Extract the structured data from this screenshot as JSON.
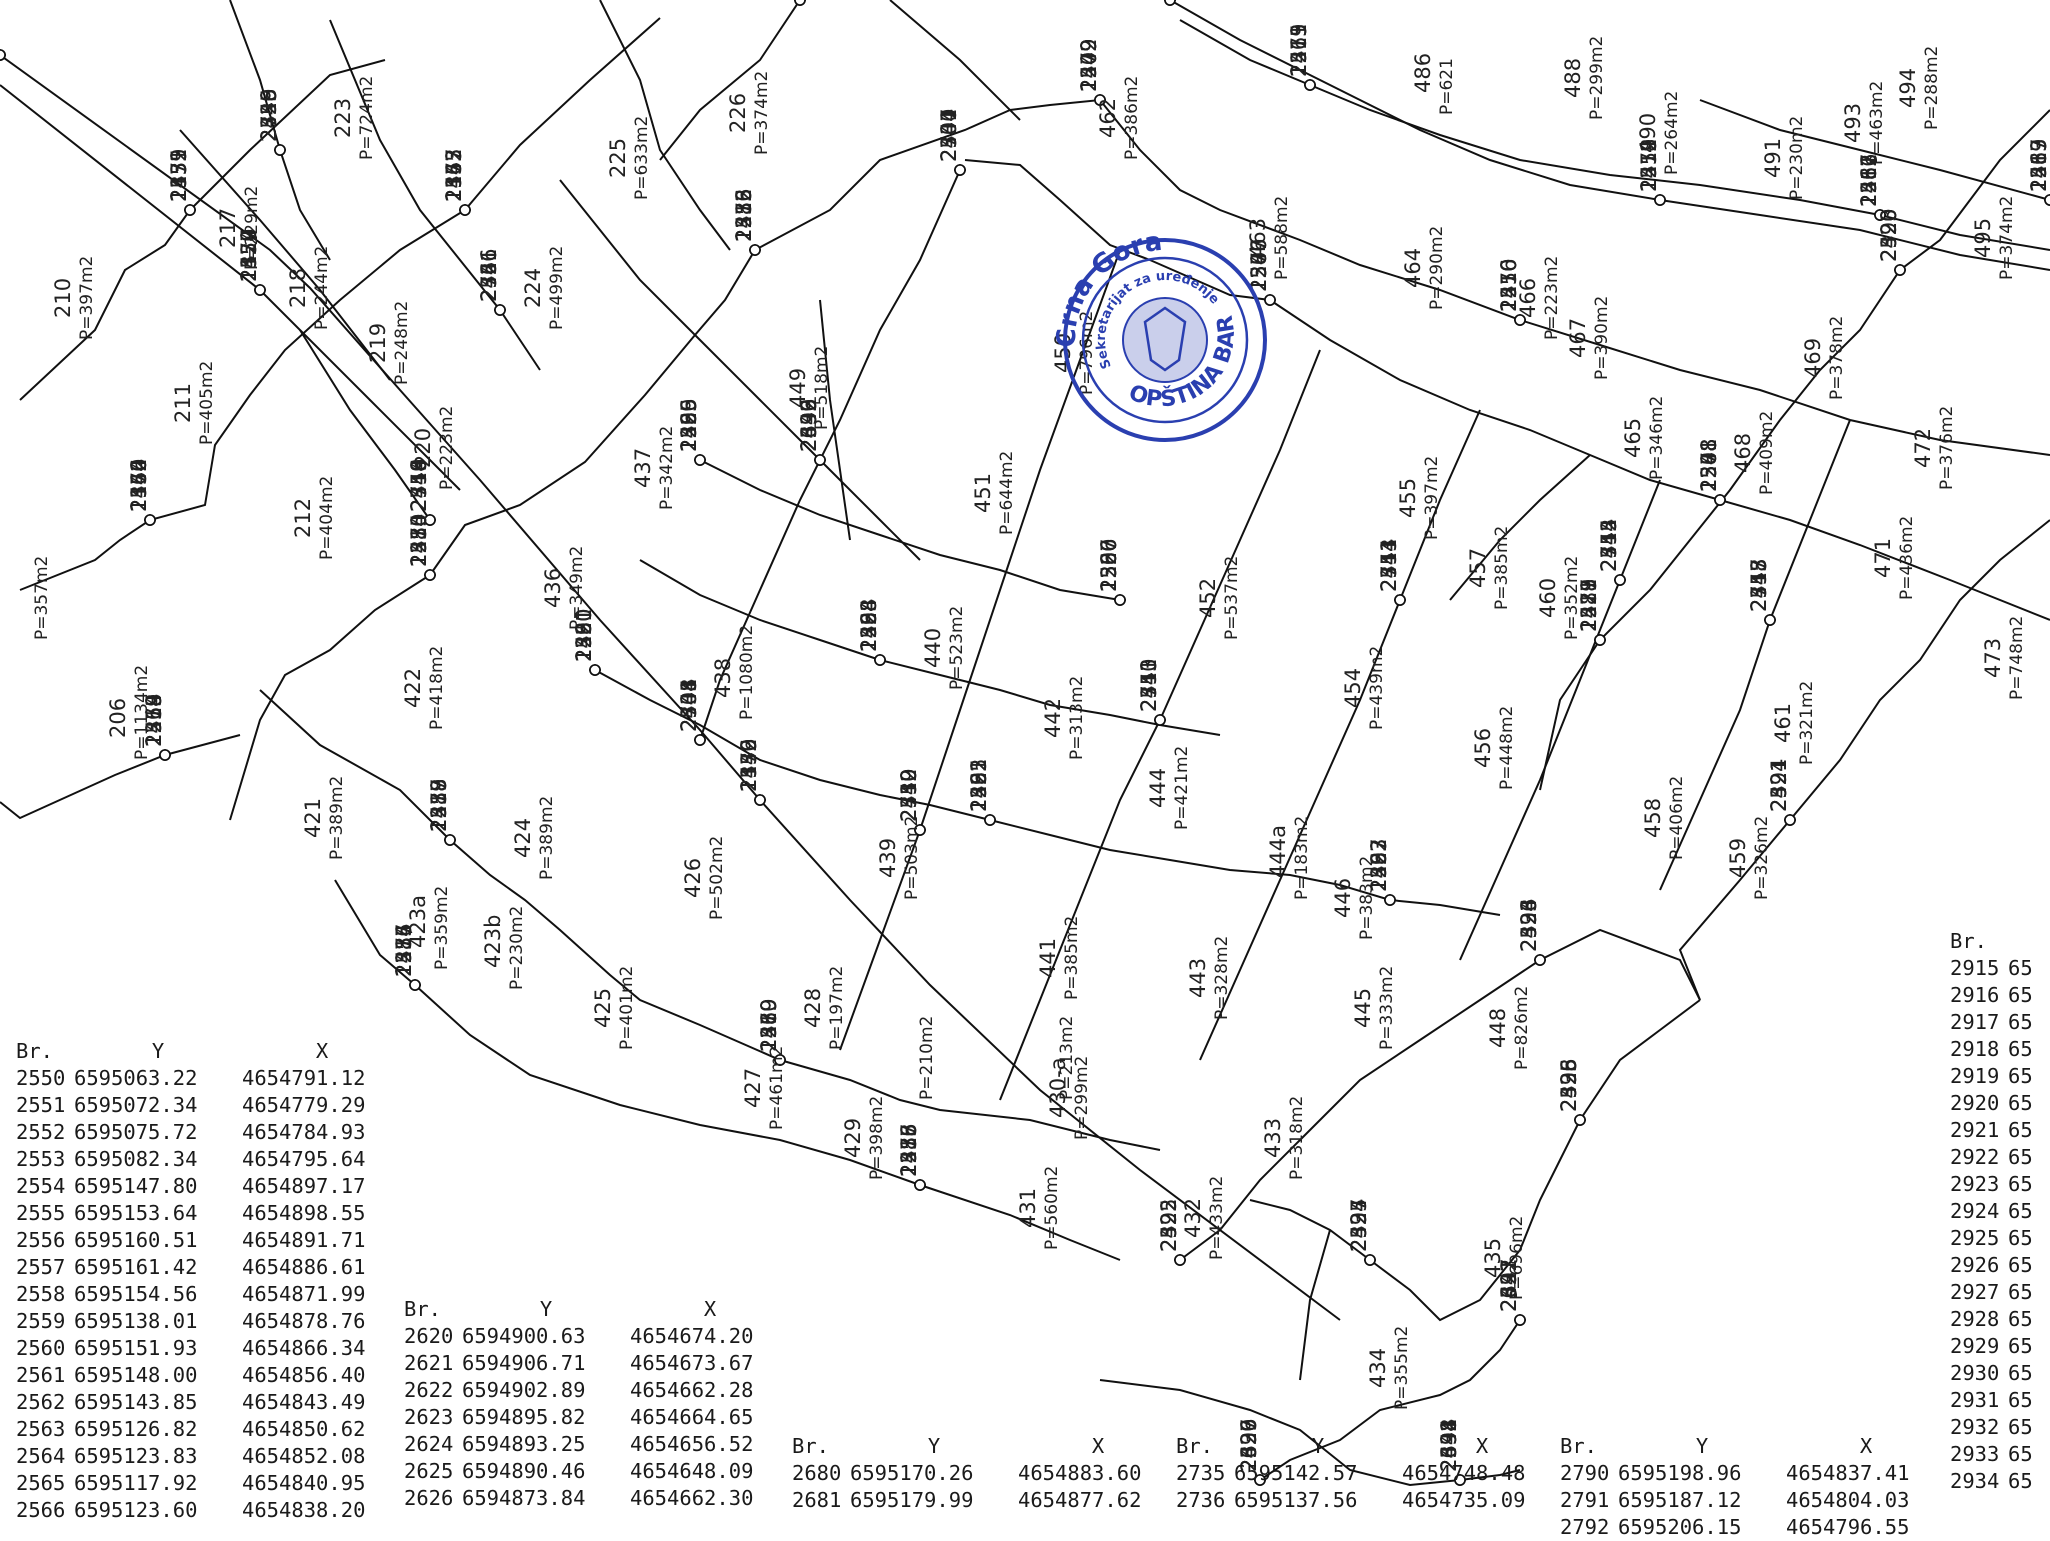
{
  "stamp": {
    "country": "Crna Gora",
    "line1": "Sekretarijat za uređenje prostora",
    "place": "OPŠTINA BAR",
    "color": "#2a3fb0"
  },
  "parcels": [
    {
      "no": "210",
      "area": "P=397m2"
    },
    {
      "no": "217",
      "area": "P=229m2"
    },
    {
      "no": "223",
      "area": "P=724m2"
    },
    {
      "no": "218",
      "area": "P=244m2"
    },
    {
      "no": "219",
      "area": "P=248m2"
    },
    {
      "no": "224",
      "area": "P=499m2"
    },
    {
      "no": "225",
      "area": "P=633m2"
    },
    {
      "no": "226",
      "area": "P=374m2"
    },
    {
      "no": "211",
      "area": "P=405m2"
    },
    {
      "no": "220",
      "area": "P=223m2"
    },
    {
      "no": "212",
      "area": "P=404m2"
    },
    {
      "no": "206",
      "area": "P=1134m2"
    },
    {
      "no": "437",
      "area": "P=342m2"
    },
    {
      "no": "436",
      "area": "P=349m2"
    },
    {
      "no": "422",
      "area": "P=418m2"
    },
    {
      "no": "438",
      "area": "P=1080m2"
    },
    {
      "no": "449",
      "area": "P=518m2"
    },
    {
      "no": "450",
      "area": "P=796m2"
    },
    {
      "no": "462",
      "area": "P=386m2"
    },
    {
      "no": "463",
      "area": "P=588m2"
    },
    {
      "no": "451",
      "area": "P=644m2"
    },
    {
      "no": "440",
      "area": "P=523m2"
    },
    {
      "no": "442",
      "area": "P=313m2"
    },
    {
      "no": "452",
      "area": "P=537m2"
    },
    {
      "no": "455",
      "area": "P=397m2"
    },
    {
      "no": "457",
      "area": "P=385m2"
    },
    {
      "no": "464",
      "area": "P=290m2"
    },
    {
      "no": "466",
      "area": "P=223m2"
    },
    {
      "no": "467",
      "area": "P=390m2"
    },
    {
      "no": "465",
      "area": "P=346m2"
    },
    {
      "no": "486",
      "area": "P=621"
    },
    {
      "no": "488",
      "area": "P=299m2"
    },
    {
      "no": "490",
      "area": "P=264m2"
    },
    {
      "no": "491",
      "area": "P=230m2"
    },
    {
      "no": "493",
      "area": "P=463m2"
    },
    {
      "no": "494",
      "area": "P=288m2"
    },
    {
      "no": "495",
      "area": "P=374m2"
    },
    {
      "no": "469",
      "area": "P=378m2"
    },
    {
      "no": "468",
      "area": "P=409m2"
    },
    {
      "no": "472",
      "area": "P=376m2"
    },
    {
      "no": "471",
      "area": "P=436m2"
    },
    {
      "no": "473",
      "area": "P=748m2"
    },
    {
      "no": "460",
      "area": "P=352m2"
    },
    {
      "no": "454",
      "area": "P=439m2"
    },
    {
      "no": "456",
      "area": "P=448m2"
    },
    {
      "no": "458",
      "area": "P=406m2"
    },
    {
      "no": "461",
      "area": "P=321m2"
    },
    {
      "no": "459",
      "area": "P=326m2"
    },
    {
      "no": "421",
      "area": "P=389m2"
    },
    {
      "no": "424",
      "area": "P=389m2"
    },
    {
      "no": "426",
      "area": "P=502m2"
    },
    {
      "no": "439",
      "area": "P=503m2"
    },
    {
      "no": "444",
      "area": "P=421m2"
    },
    {
      "no": "444a",
      "area": "P=183m2"
    },
    {
      "no": "446",
      "area": "P=383m2"
    },
    {
      "no": "441",
      "area": "P=385m2"
    },
    {
      "no": "443",
      "area": "P=328m2"
    },
    {
      "no": "445",
      "area": "P=333m2"
    },
    {
      "no": "448",
      "area": "P=826m2"
    },
    {
      "no": "425",
      "area": "P=401m2"
    },
    {
      "no": "428",
      "area": "P=197m2"
    },
    {
      "no": "427",
      "area": "P=461m2"
    },
    {
      "no": "423a",
      "area": "P=359m2"
    },
    {
      "no": "423b",
      "area": "P=230m2"
    },
    {
      "no": "429",
      "area": "P=398m2"
    },
    {
      "no": "430-a",
      "area": "P=299m2"
    },
    {
      "no": "431",
      "area": "P=560m2"
    },
    {
      "no": "432",
      "area": "P=433m2"
    },
    {
      "no": "433",
      "area": "P=318m2"
    },
    {
      "no": "434",
      "area": "P=355m2"
    },
    {
      "no": "435",
      "area": "P=696m2"
    },
    {
      "no": "",
      "area": "P=357m2"
    },
    {
      "no": "",
      "area": "P=213m2"
    },
    {
      "no": "",
      "area": "P=210m2"
    }
  ],
  "tables": [
    {
      "header": {
        "br": "Br.",
        "y": "Y",
        "x": "X"
      },
      "rows": [
        [
          "2550",
          "6595063.22",
          "4654791.12"
        ],
        [
          "2551",
          "6595072.34",
          "4654779.29"
        ],
        [
          "2552",
          "6595075.72",
          "4654784.93"
        ],
        [
          "2553",
          "6595082.34",
          "4654795.64"
        ],
        [
          "2554",
          "6595147.80",
          "4654897.17"
        ],
        [
          "2555",
          "6595153.64",
          "4654898.55"
        ],
        [
          "2556",
          "6595160.51",
          "4654891.71"
        ],
        [
          "2557",
          "6595161.42",
          "4654886.61"
        ],
        [
          "2558",
          "6595154.56",
          "4654871.99"
        ],
        [
          "2559",
          "6595138.01",
          "4654878.76"
        ],
        [
          "2560",
          "6595151.93",
          "4654866.34"
        ],
        [
          "2561",
          "6595148.00",
          "4654856.40"
        ],
        [
          "2562",
          "6595143.85",
          "4654843.49"
        ],
        [
          "2563",
          "6595126.82",
          "4654850.62"
        ],
        [
          "2564",
          "6595123.83",
          "4654852.08"
        ],
        [
          "2565",
          "6595117.92",
          "4654840.95"
        ],
        [
          "2566",
          "6595123.60",
          "4654838.20"
        ]
      ]
    },
    {
      "header": {
        "br": "Br.",
        "y": "Y",
        "x": "X"
      },
      "rows": [
        [
          "2620",
          "6594900.63",
          "4654674.20"
        ],
        [
          "2621",
          "6594906.71",
          "4654673.67"
        ],
        [
          "2622",
          "6594902.89",
          "4654662.28"
        ],
        [
          "2623",
          "6594895.82",
          "4654664.65"
        ],
        [
          "2624",
          "6594893.25",
          "4654656.52"
        ],
        [
          "2625",
          "6594890.46",
          "4654648.09"
        ],
        [
          "2626",
          "6594873.84",
          "4654662.30"
        ]
      ]
    },
    {
      "header": {
        "br": "Br.",
        "y": "Y",
        "x": "X"
      },
      "rows": [
        [
          "2680",
          "6595170.26",
          "4654883.60"
        ],
        [
          "2681",
          "6595179.99",
          "4654877.62"
        ]
      ]
    },
    {
      "header": {
        "br": "Br.",
        "y": "Y",
        "x": "X"
      },
      "rows": [
        [
          "2735",
          "6595142.57",
          "4654748.48"
        ],
        [
          "2736",
          "6595137.56",
          "4654735.09"
        ]
      ]
    },
    {
      "header": {
        "br": "Br.",
        "y": "Y",
        "x": "X"
      },
      "rows": [
        [
          "2790",
          "6595198.96",
          "4654837.41"
        ],
        [
          "2791",
          "6595187.12",
          "4654804.03"
        ],
        [
          "2792",
          "6595206.15",
          "4654796.55"
        ]
      ]
    },
    {
      "header": {
        "br": "Br.",
        "y": "",
        "x": ""
      },
      "rows": [
        [
          "2915",
          "65",
          ""
        ],
        [
          "2916",
          "65",
          ""
        ],
        [
          "2917",
          "65",
          ""
        ],
        [
          "2918",
          "65",
          ""
        ],
        [
          "2919",
          "65",
          ""
        ],
        [
          "2920",
          "65",
          ""
        ],
        [
          "2921",
          "65",
          ""
        ],
        [
          "2922",
          "65",
          ""
        ],
        [
          "2923",
          "65",
          ""
        ],
        [
          "2924",
          "65",
          ""
        ],
        [
          "2925",
          "65",
          ""
        ],
        [
          "2926",
          "65",
          ""
        ],
        [
          "2927",
          "65",
          ""
        ],
        [
          "2928",
          "65",
          ""
        ],
        [
          "2929",
          "65",
          ""
        ],
        [
          "2930",
          "65",
          ""
        ],
        [
          "2931",
          "65",
          ""
        ],
        [
          "2932",
          "65",
          ""
        ],
        [
          "2933",
          "65",
          ""
        ],
        [
          "2934",
          "65",
          ""
        ]
      ]
    }
  ],
  "points": [
    "1142",
    "1139",
    "1129",
    "1132",
    "1144",
    "1145",
    "1213",
    "1214",
    "1215",
    "1216",
    "1217",
    "1218",
    "1219",
    "1220",
    "1221",
    "1222",
    "1223",
    "1226",
    "1227",
    "1247",
    "1248",
    "1249",
    "1250",
    "1251",
    "1259",
    "1261",
    "1262",
    "1263",
    "1277",
    "2320",
    "2321",
    "2322",
    "2323",
    "2324",
    "2325",
    "2326",
    "2327",
    "2331",
    "2332",
    "2340",
    "2341",
    "2342",
    "2343",
    "2344",
    "2345",
    "2347",
    "2348",
    "2349",
    "2351",
    "2352",
    "2355",
    "2356",
    "2357",
    "2359",
    "2360",
    "2362",
    "2369",
    "2370",
    "2372",
    "2375",
    "2376",
    "2378",
    "2379",
    "2381",
    "2382",
    "2383",
    "2384",
    "2385",
    "2386",
    "2387",
    "2388",
    "2409",
    "2410",
    "2411",
    "2412",
    "2415",
    "2416",
    "2417",
    "2419",
    "2420",
    "2421",
    "2422",
    "2434",
    "2435",
    "2436",
    "2437",
    "2442",
    "2444",
    "2446",
    "2447",
    "2448",
    "2450",
    "2451",
    "2453",
    "2454",
    "2455",
    "2456",
    "2458",
    "2461",
    "2464",
    "2471",
    "2472",
    "2474",
    "2475",
    "2476",
    "2477",
    "2478",
    "2480",
    "2483",
    "2484",
    "2485",
    "2487",
    "2489",
    "2490",
    "2495",
    "2497",
    "2498",
    "2499",
    "2500",
    "2506",
    "2508",
    "2509",
    "2510",
    "2511",
    "2512",
    "2513",
    "2517",
    "2519",
    "2521",
    "2523",
    "2524",
    "2525",
    "2526",
    "2527",
    "2528",
    "2529",
    "2531",
    "2532",
    "2533",
    "2534",
    "2535",
    "2539",
    "2540",
    "2541",
    "2542",
    "2543",
    "2544",
    "2545",
    "2546",
    "2547",
    "2548",
    "2549",
    "2550",
    "2551",
    "2552",
    "2553",
    "2554",
    "2555",
    "2556",
    "2557",
    "2558",
    "2559",
    "2560",
    "2561",
    "2562",
    "2563",
    "2564",
    "2565",
    "2566",
    "2570",
    "2571",
    "2572",
    "2576",
    "2577",
    "2578",
    "2579",
    "2581",
    "2583",
    "2588",
    "2590",
    "2591",
    "2592",
    "2593",
    "2594",
    "2595",
    "2696",
    "2697",
    "2698",
    "2699",
    "2701",
    "2704",
    "2710",
    "2713",
    "2714",
    "2715",
    "2718",
    "2719",
    "2720",
    "2726",
    "2727",
    "2728"
  ]
}
